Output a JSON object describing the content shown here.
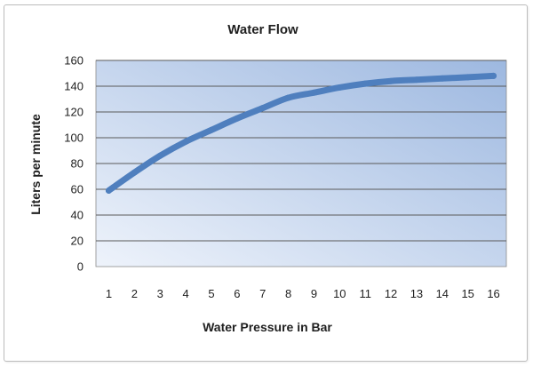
{
  "chart_data": {
    "type": "line",
    "title": "Water Flow",
    "xlabel": "Water Pressure in Bar",
    "ylabel": "Liters per minute",
    "categories": [
      "1",
      "2",
      "3",
      "4",
      "5",
      "6",
      "7",
      "8",
      "9",
      "10",
      "11",
      "12",
      "13",
      "14",
      "15",
      "16"
    ],
    "series": [
      {
        "values": [
          59,
          73,
          86,
          97,
          106,
          115,
          123,
          131,
          135,
          139,
          142,
          144,
          145,
          146,
          147,
          148
        ]
      }
    ],
    "ylim": [
      0,
      160
    ],
    "yticks": [
      "0",
      "20",
      "40",
      "60",
      "80",
      "100",
      "120",
      "140",
      "160"
    ],
    "grid": true,
    "legend": "none",
    "colors": {
      "line": "#4f7fbe",
      "plot_bg_top": "#9db8e0",
      "plot_bg_bottom": "#eef3fb",
      "grid": "#5a5a5a"
    }
  }
}
